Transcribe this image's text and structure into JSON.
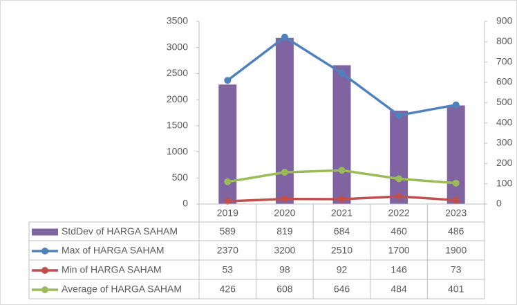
{
  "chart_data": {
    "type": "bar",
    "categories": [
      "2019",
      "2020",
      "2021",
      "2022",
      "2023"
    ],
    "series": [
      {
        "name": "StdDev of HARGA SAHAM",
        "type": "bar",
        "axis": "y2",
        "color": "#8064a2",
        "values": [
          589,
          819,
          684,
          460,
          486
        ]
      },
      {
        "name": "Max of HARGA SAHAM",
        "type": "line",
        "color": "#4f81bd",
        "values": [
          2370,
          3200,
          2510,
          1700,
          1900
        ]
      },
      {
        "name": "Min of HARGA SAHAM",
        "type": "line",
        "color": "#c0504d",
        "values": [
          53,
          98,
          92,
          146,
          73
        ]
      },
      {
        "name": "Average of HARGA SAHAM",
        "type": "line",
        "color": "#9bbb59",
        "values": [
          426,
          608,
          646,
          484,
          401
        ]
      }
    ],
    "ylim": [
      0,
      3500
    ],
    "yticks": [
      0,
      500,
      1000,
      1500,
      2000,
      2500,
      3000,
      3500
    ],
    "y2lim": [
      0,
      900
    ],
    "y2ticks": [
      0,
      100,
      200,
      300,
      400,
      500,
      600,
      700,
      800,
      900
    ]
  }
}
